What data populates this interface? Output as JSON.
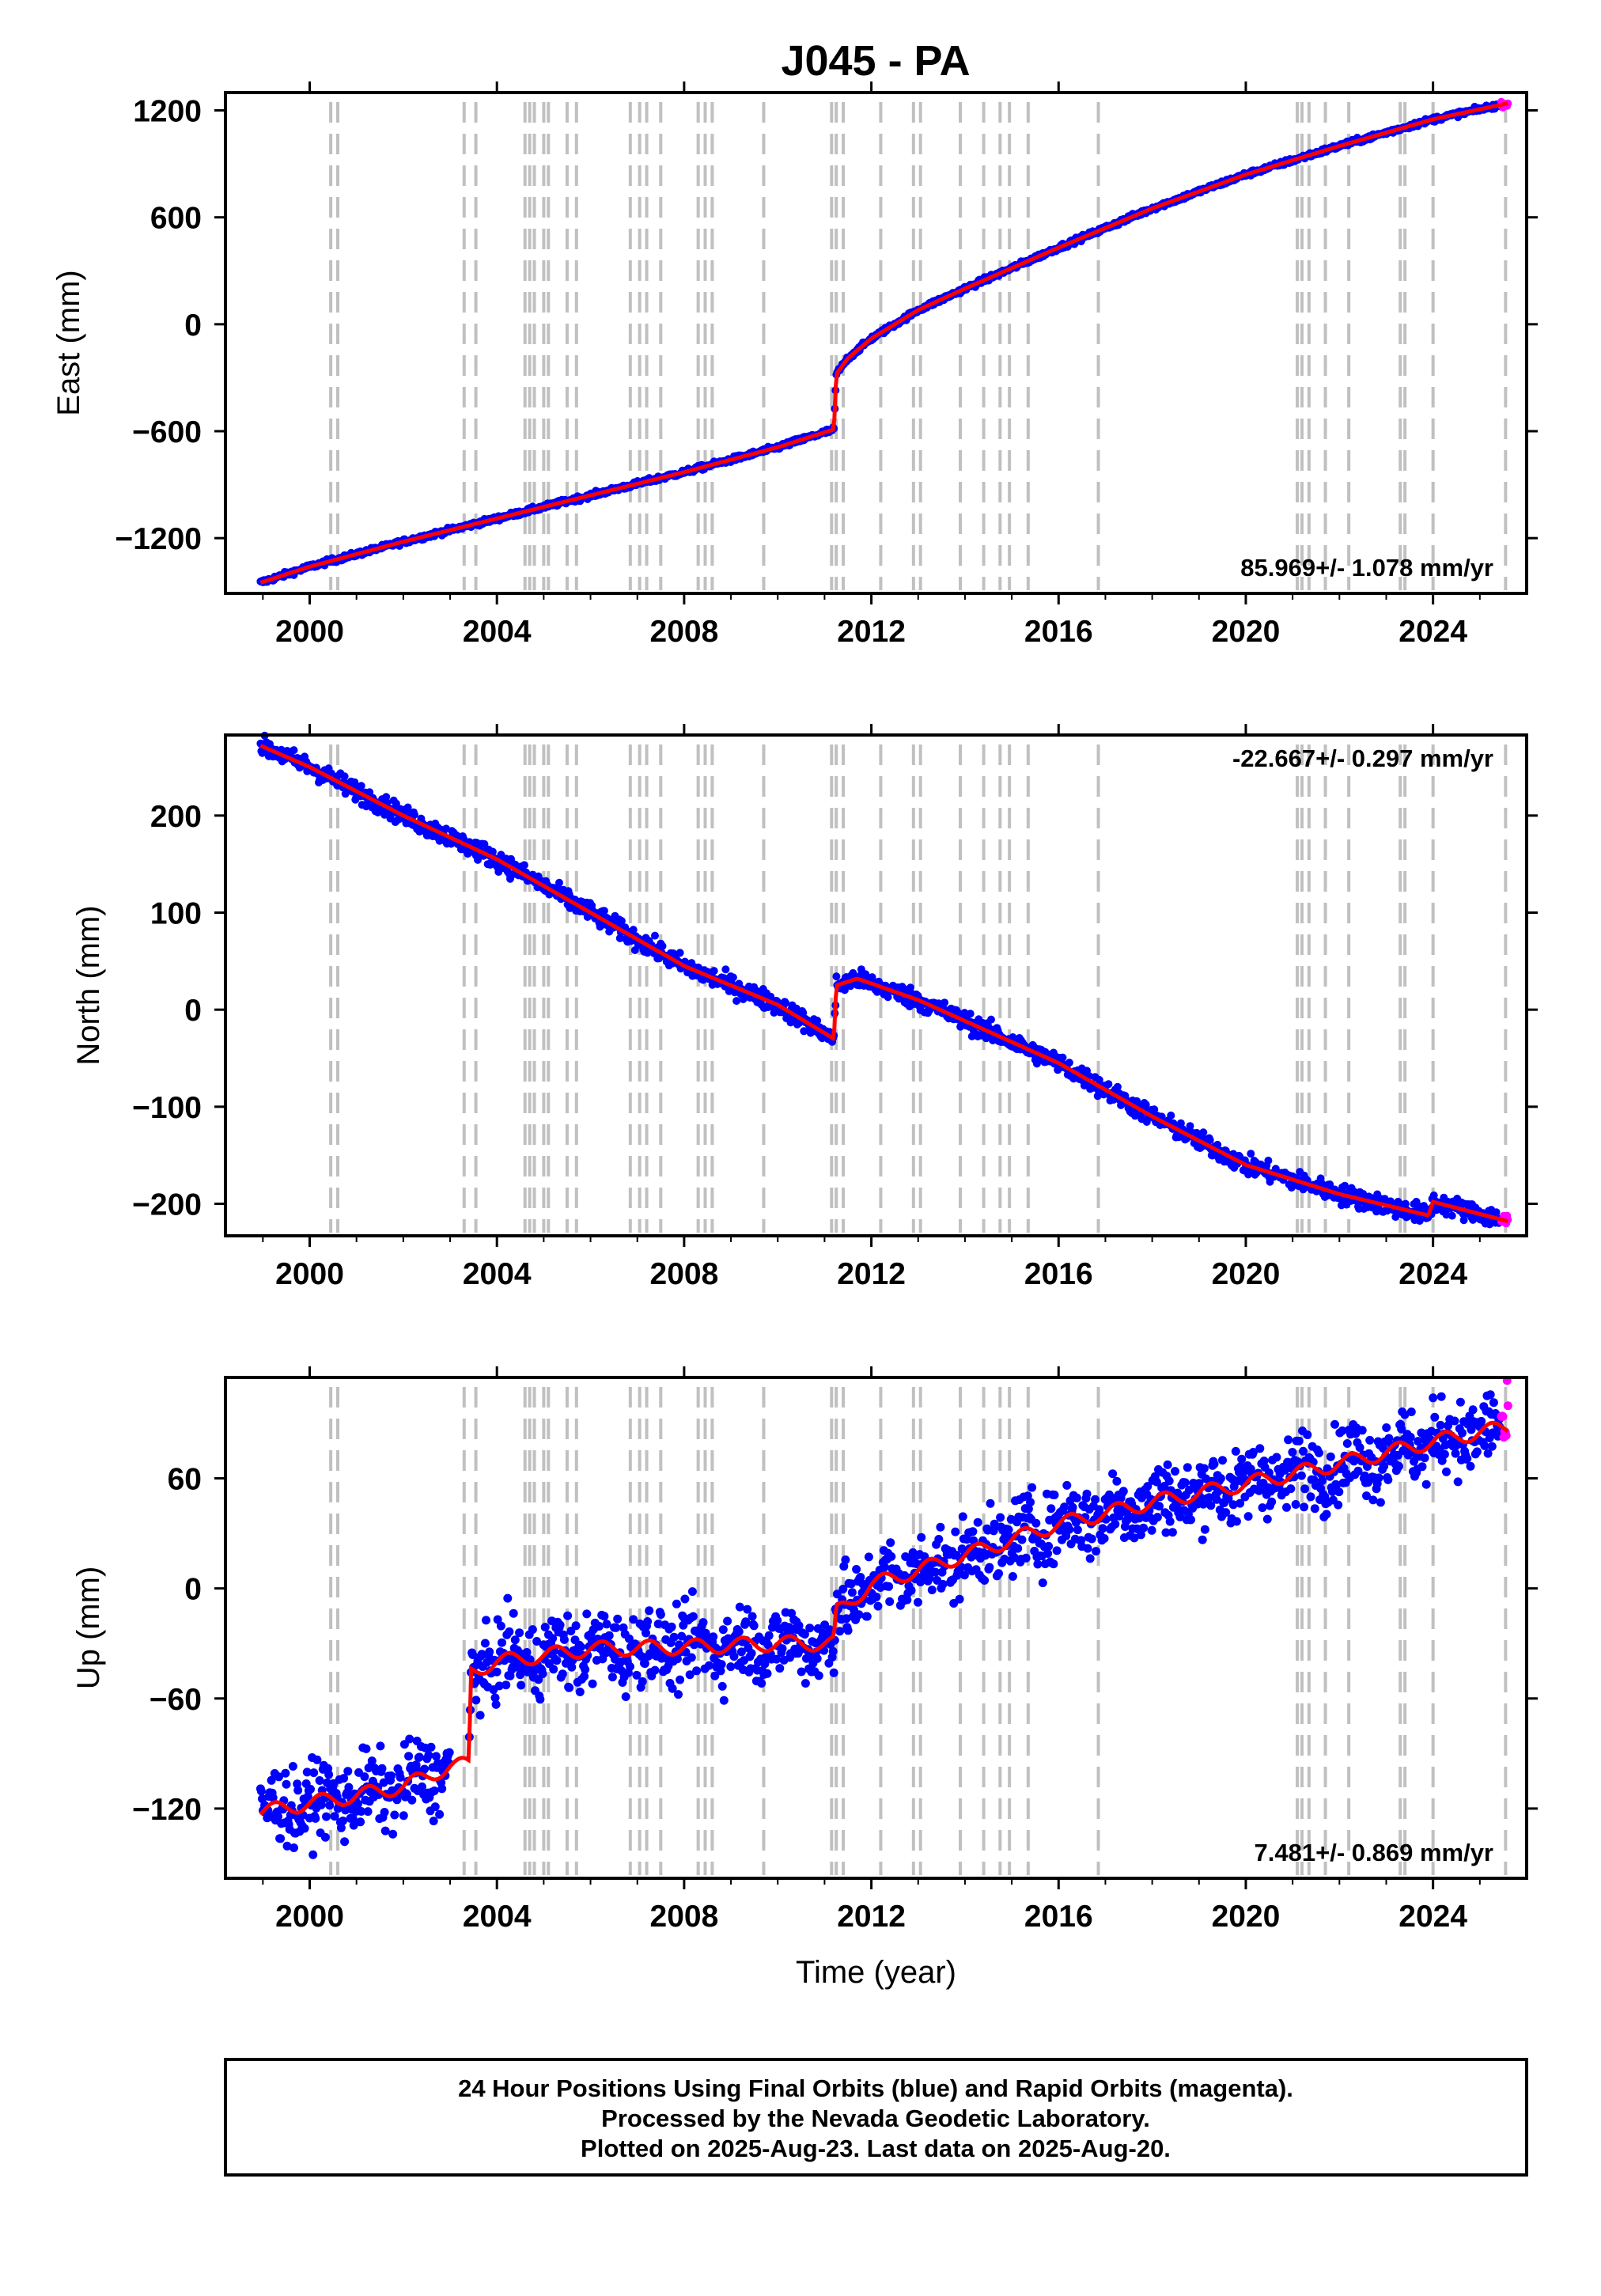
{
  "title": "J045 - PA",
  "colors": {
    "final_orbits": "#0000ff",
    "rapid_orbits": "#ff00ff",
    "model": "#ff0000",
    "event_lines": "#c0c0c0"
  },
  "footer": {
    "line1": "24 Hour Positions Using Final Orbits (blue) and Rapid Orbits (magenta).",
    "line2": "Processed by the Nevada Geodetic Laboratory.",
    "line3": "Plotted on 2025-Aug-23. Last data on 2025-Aug-20."
  },
  "chart_data": [
    {
      "type": "scatter",
      "panel": "east",
      "ylabel": "East (mm)",
      "xlabel": "",
      "xlim": [
        1998.2,
        2026.0
      ],
      "ylim": [
        -1510,
        1300
      ],
      "x_ticks": [
        "2000",
        "2004",
        "2008",
        "2012",
        "2016",
        "2020",
        "2024"
      ],
      "y_ticks": [
        "1200",
        "600",
        "0",
        "-600",
        "-1200"
      ],
      "rate_label": "85.969+/- 1.078 mm/yr",
      "rate_position": "bottom-right",
      "grid": false,
      "series": [
        {
          "x": [
            1998.95,
            2000,
            2002,
            2004,
            2006,
            2008,
            2010,
            2011.2,
            2011.25,
            2011.5,
            2012,
            2013,
            2014,
            2016,
            2018,
            2020,
            2022,
            2024,
            2025.6
          ],
          "values": [
            -1450,
            -1360,
            -1220,
            -1090,
            -960,
            -830,
            -690,
            -590,
            -280,
            -190,
            -80,
            80,
            200,
            430,
            650,
            840,
            1000,
            1150,
            1240
          ]
        }
      ]
    },
    {
      "type": "scatter",
      "panel": "north",
      "ylabel": "North (mm)",
      "xlabel": "",
      "xlim": [
        1998.2,
        2026.0
      ],
      "ylim": [
        -233,
        283
      ],
      "x_ticks": [
        "2000",
        "2004",
        "2008",
        "2012",
        "2016",
        "2020",
        "2024"
      ],
      "y_ticks": [
        "200",
        "100",
        "0",
        "-100",
        "-200"
      ],
      "rate_label": "-22.667+/- 0.297 mm/yr",
      "rate_position": "top-right",
      "grid": false,
      "series": [
        {
          "x": [
            1998.95,
            2000,
            2002,
            2004,
            2006,
            2008,
            2010,
            2011.2,
            2011.25,
            2011.7,
            2013,
            2016,
            2018,
            2020,
            2022,
            2023.9,
            2024.0,
            2025.6
          ],
          "values": [
            272,
            250,
            200,
            155,
            100,
            45,
            5,
            -30,
            25,
            32,
            10,
            -55,
            -110,
            -160,
            -190,
            -212,
            -198,
            -218
          ]
        }
      ]
    },
    {
      "type": "scatter",
      "panel": "up",
      "ylabel": "Up (mm)",
      "xlabel": "Time (year)",
      "xlim": [
        1998.2,
        2026.0
      ],
      "ylim": [
        -158,
        115
      ],
      "x_ticks": [
        "2000",
        "2004",
        "2008",
        "2012",
        "2016",
        "2020",
        "2024"
      ],
      "y_ticks": [
        "60",
        "0",
        "-60",
        "-120"
      ],
      "rate_label": "7.481+/- 0.869 mm/yr",
      "rate_position": "bottom-right",
      "grid": false,
      "series": [
        {
          "x": [
            1998.95,
            2000,
            2001,
            2002,
            2003.0,
            2003.4,
            2003.45,
            2004,
            2006,
            2008,
            2010,
            2011.2,
            2011.25,
            2012,
            2014,
            2016,
            2018,
            2020,
            2022,
            2024,
            2025.6
          ],
          "values": [
            -122,
            -117,
            -113,
            -108,
            -97,
            -96,
            -45,
            -40,
            -33,
            -32,
            -30,
            -30,
            -13,
            2,
            18,
            35,
            47,
            57,
            68,
            80,
            88
          ]
        }
      ]
    }
  ]
}
